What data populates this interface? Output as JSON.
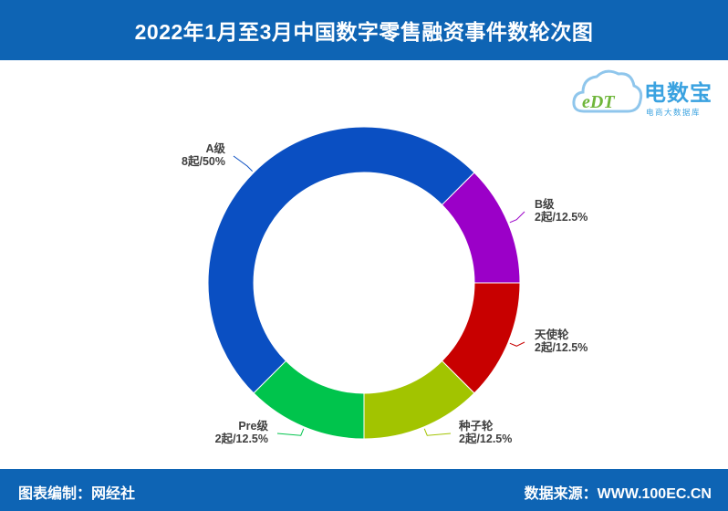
{
  "title": "2022年1月至3月中国数字零售融资事件数轮次图",
  "footer": {
    "editor": "图表编制：网经社",
    "source": "数据来源：WWW.100EC.CN"
  },
  "logo": {
    "name": "电数宝",
    "subtitle": "电商大数据库",
    "mark": "eDT"
  },
  "chart_data": {
    "type": "pie",
    "donut": true,
    "unit": "起",
    "slices": [
      {
        "name": "A级",
        "value": 8,
        "percent": "50%",
        "label": "8起/50%",
        "color": "#0a4fc2"
      },
      {
        "name": "B级",
        "value": 2,
        "percent": "12.5%",
        "label": "2起/12.5%",
        "color": "#9b00c8"
      },
      {
        "name": "天使轮",
        "value": 2,
        "percent": "12.5%",
        "label": "2起/12.5%",
        "color": "#c80000"
      },
      {
        "name": "种子轮",
        "value": 2,
        "percent": "12.5%",
        "label": "2起/12.5%",
        "color": "#a2c400"
      },
      {
        "name": "Pre级",
        "value": 2,
        "percent": "12.5%",
        "label": "2起/12.5%",
        "color": "#00c44c"
      }
    ]
  }
}
